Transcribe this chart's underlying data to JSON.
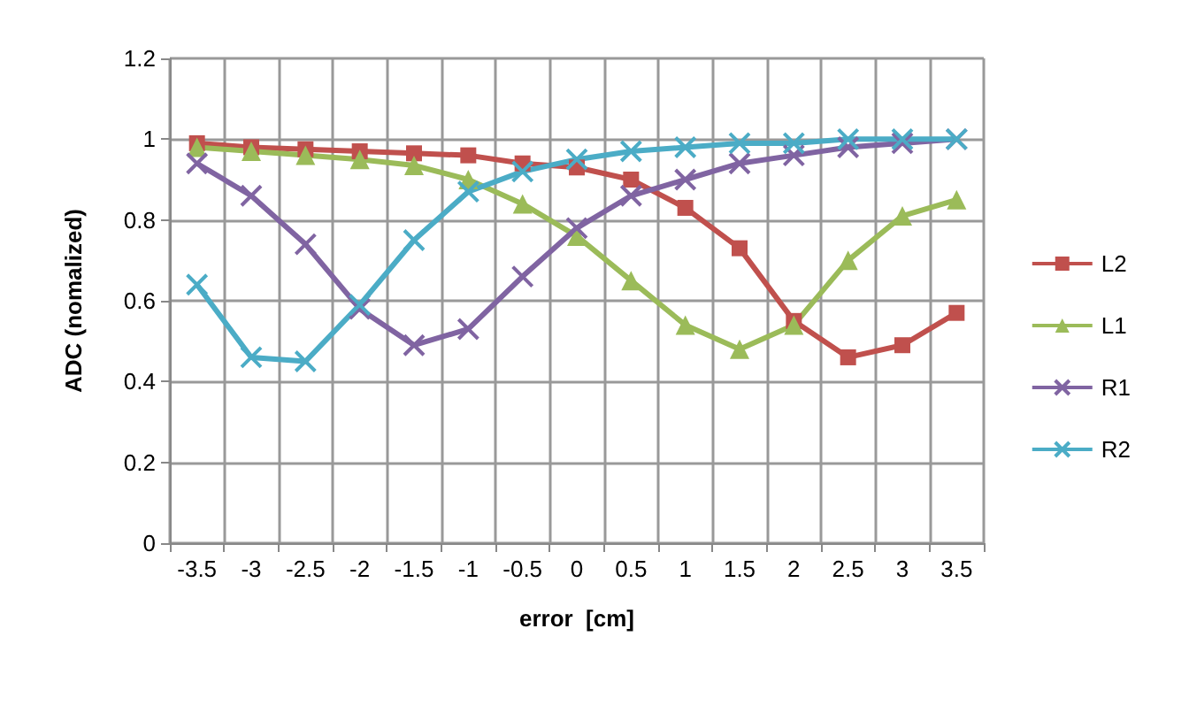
{
  "chart_data": {
    "type": "line",
    "xlabel": "error  [cm]",
    "ylabel": "ADC (nomalized)",
    "categories": [
      "-3.5",
      "-3",
      "-2.5",
      "-2",
      "-1.5",
      "-1",
      "-0.5",
      "0",
      "0.5",
      "1",
      "1.5",
      "2",
      "2.5",
      "3",
      "3.5"
    ],
    "ylim": [
      0,
      1.2
    ],
    "yticks": [
      0,
      0.2,
      0.4,
      0.6,
      0.8,
      1,
      1.2
    ],
    "grid": true,
    "legend": "right",
    "line_style": "solid",
    "series": [
      {
        "name": "L2",
        "color": "#c0504d",
        "marker": "square",
        "values": [
          0.99,
          0.98,
          0.975,
          0.97,
          0.965,
          0.96,
          0.94,
          0.93,
          0.9,
          0.83,
          0.73,
          0.55,
          0.46,
          0.49,
          0.57
        ]
      },
      {
        "name": "L1",
        "color": "#9bbb59",
        "marker": "triangle",
        "values": [
          0.98,
          0.97,
          0.96,
          0.95,
          0.935,
          0.9,
          0.84,
          0.76,
          0.65,
          0.54,
          0.48,
          0.54,
          0.7,
          0.81,
          0.85
        ]
      },
      {
        "name": "R1",
        "color": "#8064a2",
        "marker": "cross",
        "values": [
          0.94,
          0.86,
          0.74,
          0.58,
          0.49,
          0.53,
          0.66,
          0.78,
          0.86,
          0.9,
          0.94,
          0.96,
          0.98,
          0.99,
          1.0
        ]
      },
      {
        "name": "R2",
        "color": "#4bacc6",
        "marker": "cross",
        "values": [
          0.64,
          0.46,
          0.45,
          0.59,
          0.75,
          0.87,
          0.92,
          0.95,
          0.97,
          0.98,
          0.99,
          0.99,
          1.0,
          1.0,
          1.0
        ]
      }
    ]
  }
}
